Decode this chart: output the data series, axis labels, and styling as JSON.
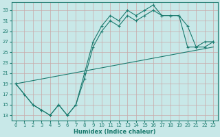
{
  "xlabel": "Humidex (Indice chaleur)",
  "bg_color": "#c8e8e8",
  "line_color": "#1a7a6e",
  "grid_color": "#b8d8d8",
  "xlim": [
    -0.5,
    23.5
  ],
  "ylim": [
    12,
    34.5
  ],
  "yticks": [
    13,
    15,
    17,
    19,
    21,
    23,
    25,
    27,
    29,
    31,
    33
  ],
  "xticks": [
    0,
    1,
    2,
    3,
    4,
    5,
    6,
    7,
    8,
    9,
    10,
    11,
    12,
    13,
    14,
    15,
    16,
    17,
    18,
    19,
    20,
    21,
    22,
    23
  ],
  "line1_x": [
    0,
    1,
    2,
    3,
    4,
    5,
    6,
    7,
    8,
    9,
    10,
    11,
    12,
    13,
    14,
    15,
    16,
    17,
    18,
    19,
    20,
    21,
    22,
    23
  ],
  "line1_y": [
    19,
    17,
    15,
    14,
    13,
    15,
    13,
    15,
    21,
    27,
    30,
    32,
    31,
    33,
    32,
    33,
    34,
    32,
    32,
    32,
    30,
    26,
    26,
    27
  ],
  "line2_x": [
    0,
    2,
    3,
    4,
    5,
    6,
    7,
    8,
    9,
    10,
    11,
    12,
    13,
    14,
    15,
    16,
    17,
    18,
    19,
    20,
    21,
    22,
    23
  ],
  "line2_y": [
    19,
    15,
    14,
    13,
    15,
    13,
    15,
    20,
    26,
    29,
    31,
    30,
    32,
    31,
    32,
    33,
    32,
    32,
    32,
    26,
    26,
    27,
    27
  ],
  "line3_x": [
    0,
    23
  ],
  "line3_y": [
    19,
    26
  ]
}
